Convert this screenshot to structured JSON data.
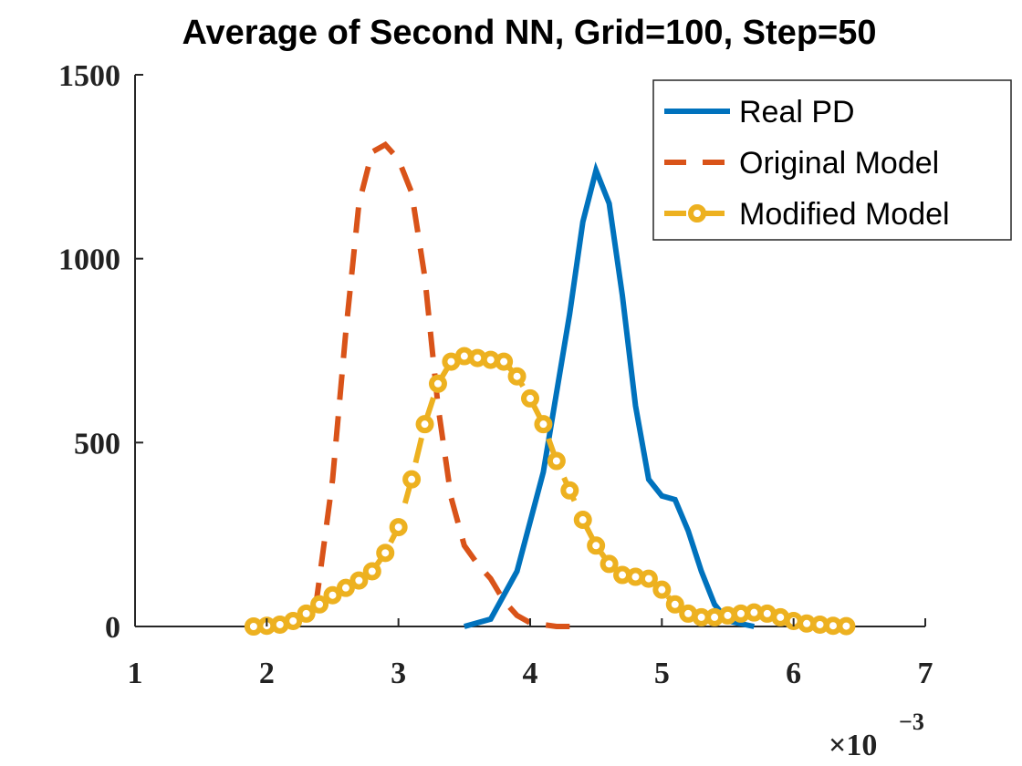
{
  "chart_data": {
    "type": "line",
    "title": "Average of Second NN, Grid=100, Step=50",
    "xlim": [
      1,
      7
    ],
    "xticks": [
      1,
      2,
      3,
      4,
      5,
      6,
      7
    ],
    "ylim": [
      0,
      1500
    ],
    "yticks": [
      0,
      500,
      1000,
      1500
    ],
    "x_multiplier": {
      "base": "×10",
      "exponent": "−3"
    },
    "legend_position": "upper right",
    "grid": false,
    "series": [
      {
        "name": "Real PD",
        "color": "#0072bd",
        "style": "solid",
        "x": [
          3.5,
          3.7,
          3.9,
          4.1,
          4.3,
          4.4,
          4.5,
          4.6,
          4.7,
          4.8,
          4.9,
          5.0,
          5.1,
          5.2,
          5.3,
          5.4,
          5.5,
          5.7
        ],
        "values": [
          0,
          20,
          150,
          420,
          850,
          1100,
          1240,
          1150,
          900,
          600,
          400,
          355,
          345,
          260,
          150,
          60,
          15,
          0
        ]
      },
      {
        "name": "Original Model",
        "color": "#d95319",
        "style": "dashed",
        "x": [
          2.37,
          2.4,
          2.5,
          2.6,
          2.7,
          2.8,
          2.9,
          3.0,
          3.1,
          3.2,
          3.3,
          3.4,
          3.5,
          3.6,
          3.7,
          3.8,
          3.9,
          4.0,
          4.2,
          4.3
        ],
        "values": [
          50,
          130,
          400,
          800,
          1150,
          1290,
          1310,
          1270,
          1180,
          950,
          600,
          350,
          220,
          170,
          130,
          70,
          30,
          10,
          0,
          0
        ]
      },
      {
        "name": "Modified Model",
        "color": "#edb120",
        "style": "dashed-marker",
        "x": [
          1.9,
          2.0,
          2.1,
          2.2,
          2.3,
          2.4,
          2.5,
          2.6,
          2.7,
          2.8,
          2.9,
          3.0,
          3.1,
          3.2,
          3.3,
          3.4,
          3.5,
          3.6,
          3.7,
          3.8,
          3.9,
          4.0,
          4.1,
          4.2,
          4.3,
          4.4,
          4.5,
          4.6,
          4.7,
          4.8,
          4.9,
          5.0,
          5.1,
          5.2,
          5.3,
          5.4,
          5.5,
          5.6,
          5.7,
          5.8,
          5.9,
          6.0,
          6.1,
          6.2,
          6.3,
          6.4
        ],
        "values": [
          0,
          2,
          5,
          15,
          35,
          60,
          85,
          105,
          125,
          150,
          200,
          270,
          400,
          550,
          660,
          720,
          735,
          730,
          725,
          720,
          680,
          620,
          550,
          450,
          370,
          290,
          220,
          170,
          140,
          135,
          130,
          100,
          60,
          35,
          25,
          25,
          30,
          35,
          38,
          35,
          25,
          15,
          8,
          5,
          2,
          1
        ]
      }
    ]
  }
}
